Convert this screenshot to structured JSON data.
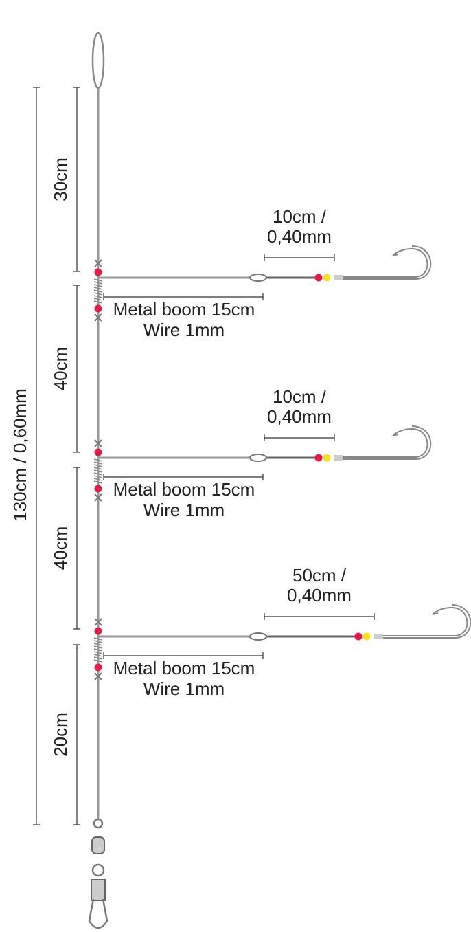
{
  "total_label": "130cm / 0,60mm",
  "segments": [
    "30cm",
    "40cm",
    "40cm",
    "20cm"
  ],
  "booms": [
    {
      "snood_label": [
        "10cm /",
        "0,40mm"
      ],
      "boom_label": [
        "Metal boom 15cm",
        "Wire 1mm"
      ]
    },
    {
      "snood_label": [
        "10cm /",
        "0,40mm"
      ],
      "boom_label": [
        "Metal boom 15cm",
        "Wire 1mm"
      ]
    },
    {
      "snood_label": [
        "50cm /",
        "0,40mm"
      ],
      "boom_label": [
        "Metal boom 15cm",
        "Wire 1mm"
      ]
    }
  ]
}
